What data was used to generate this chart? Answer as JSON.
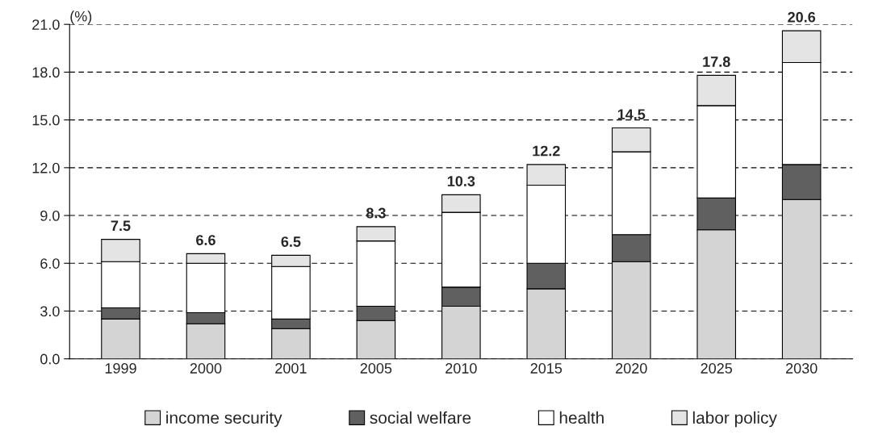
{
  "chart_data": {
    "type": "bar",
    "stacked": true,
    "ylabel": "(%)",
    "categories": [
      "1999",
      "2000",
      "2001",
      "2005",
      "2010",
      "2015",
      "2020",
      "2025",
      "2030"
    ],
    "series": [
      {
        "name": "income security",
        "color": "#d4d4d4",
        "values": [
          2.5,
          2.2,
          1.9,
          2.4,
          3.3,
          4.4,
          6.1,
          8.1,
          10.0
        ]
      },
      {
        "name": "social welfare",
        "color": "#606060",
        "values": [
          0.7,
          0.7,
          0.6,
          0.9,
          1.2,
          1.6,
          1.7,
          2.0,
          2.2
        ]
      },
      {
        "name": "health",
        "color": "#ffffff",
        "values": [
          2.9,
          3.1,
          3.3,
          4.1,
          4.7,
          4.9,
          5.2,
          5.8,
          6.4
        ]
      },
      {
        "name": "labor policy",
        "color": "#e4e4e4",
        "values": [
          1.4,
          0.6,
          0.7,
          0.9,
          1.1,
          1.3,
          1.5,
          1.9,
          2.0
        ]
      }
    ],
    "totals": [
      "7.5",
      "6.6",
      "6.5",
      "8.3",
      "10.3",
      "12.2",
      "14.5",
      "17.8",
      "20.6"
    ],
    "ylim": [
      0,
      21
    ],
    "yticks": [
      {
        "value": 0,
        "label": "0.0"
      },
      {
        "value": 3,
        "label": "3.0"
      },
      {
        "value": 6,
        "label": "6.0"
      },
      {
        "value": 9,
        "label": "9.0"
      },
      {
        "value": 12,
        "label": "12.0"
      },
      {
        "value": 15,
        "label": "15.0"
      },
      {
        "value": 18,
        "label": "18.0"
      },
      {
        "value": 21,
        "label": "21.0"
      }
    ],
    "grid": "y",
    "legend": "bottom"
  }
}
